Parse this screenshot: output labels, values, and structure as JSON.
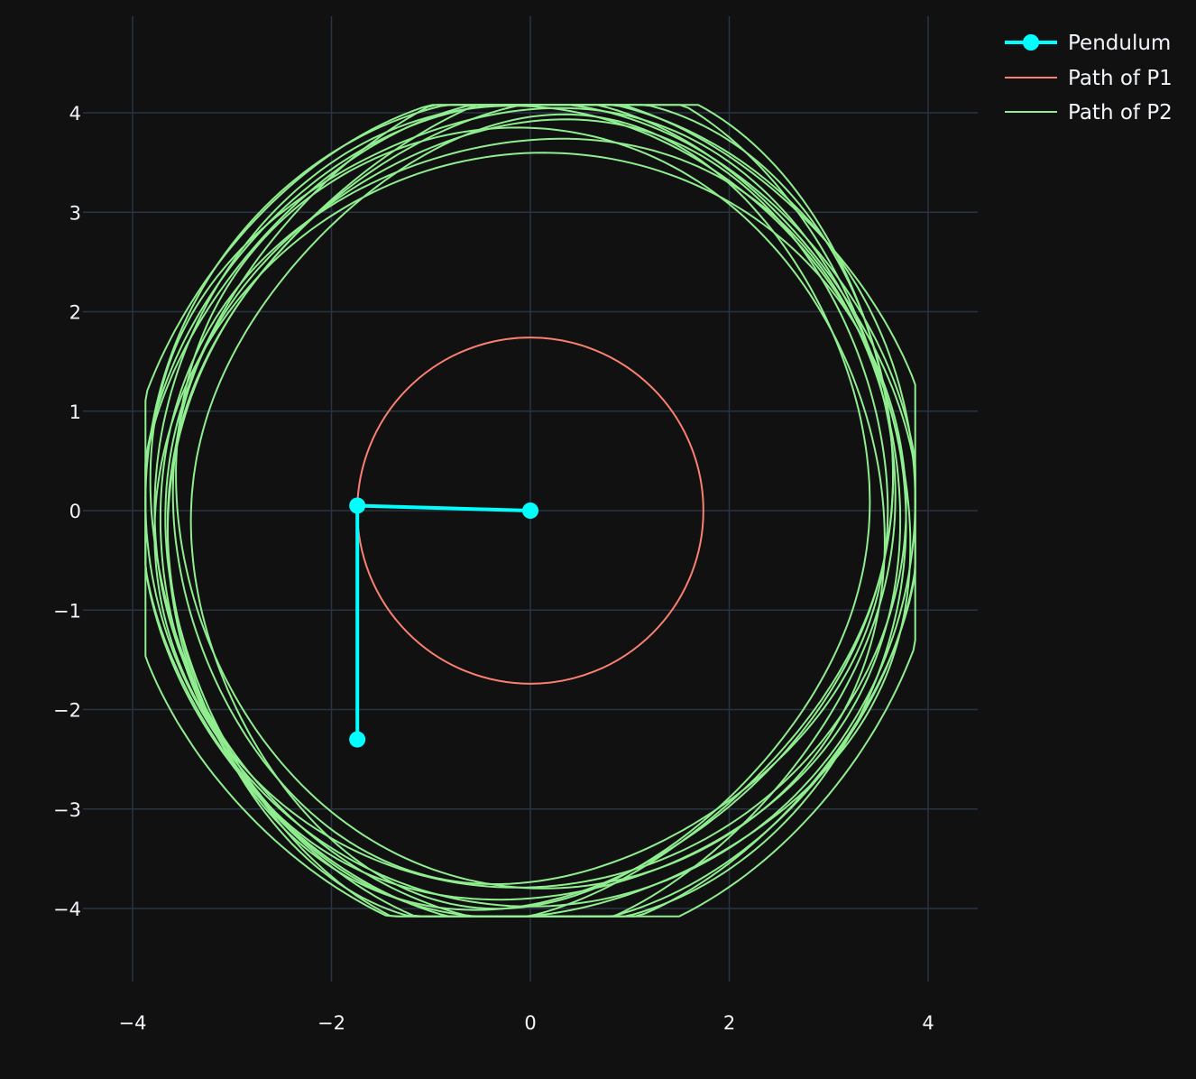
{
  "colors": {
    "background": "#111111",
    "grid": "#283442",
    "text": "#f2f5fa",
    "pendulum": "#00ffff",
    "path_p1": "#fa8072",
    "path_p2": "#90ee90"
  },
  "chart_data": {
    "type": "line",
    "title": "",
    "xlabel": "",
    "ylabel": "",
    "xlim": [
      -4.5,
      4.5
    ],
    "ylim": [
      -4.9,
      4.9
    ],
    "xticks": [
      -4,
      -2,
      0,
      2,
      4
    ],
    "yticks": [
      -4,
      -3,
      -2,
      -1,
      0,
      1,
      2,
      3,
      4
    ],
    "x_tick_labels": [
      "−4",
      "−2",
      "0",
      "2",
      "4"
    ],
    "y_tick_labels": [
      "−4",
      "−3",
      "−2",
      "−1",
      "0",
      "1",
      "2",
      "3",
      "4"
    ],
    "grid": true,
    "legend_position": "top-right",
    "series": [
      {
        "name": "Pendulum",
        "mode": "lines+markers",
        "x": [
          0,
          -1.74,
          -1.74
        ],
        "y": [
          0,
          0.05,
          -2.3
        ]
      },
      {
        "name": "Path of P1",
        "mode": "lines",
        "shape": "circle",
        "center": [
          0,
          0
        ],
        "radius": 1.74
      },
      {
        "name": "Path of P2",
        "mode": "lines",
        "shape": "precessing-loops",
        "x_range": [
          -3.87,
          3.87
        ],
        "y_range": [
          -4.08,
          4.08
        ],
        "loops": 14
      }
    ]
  }
}
